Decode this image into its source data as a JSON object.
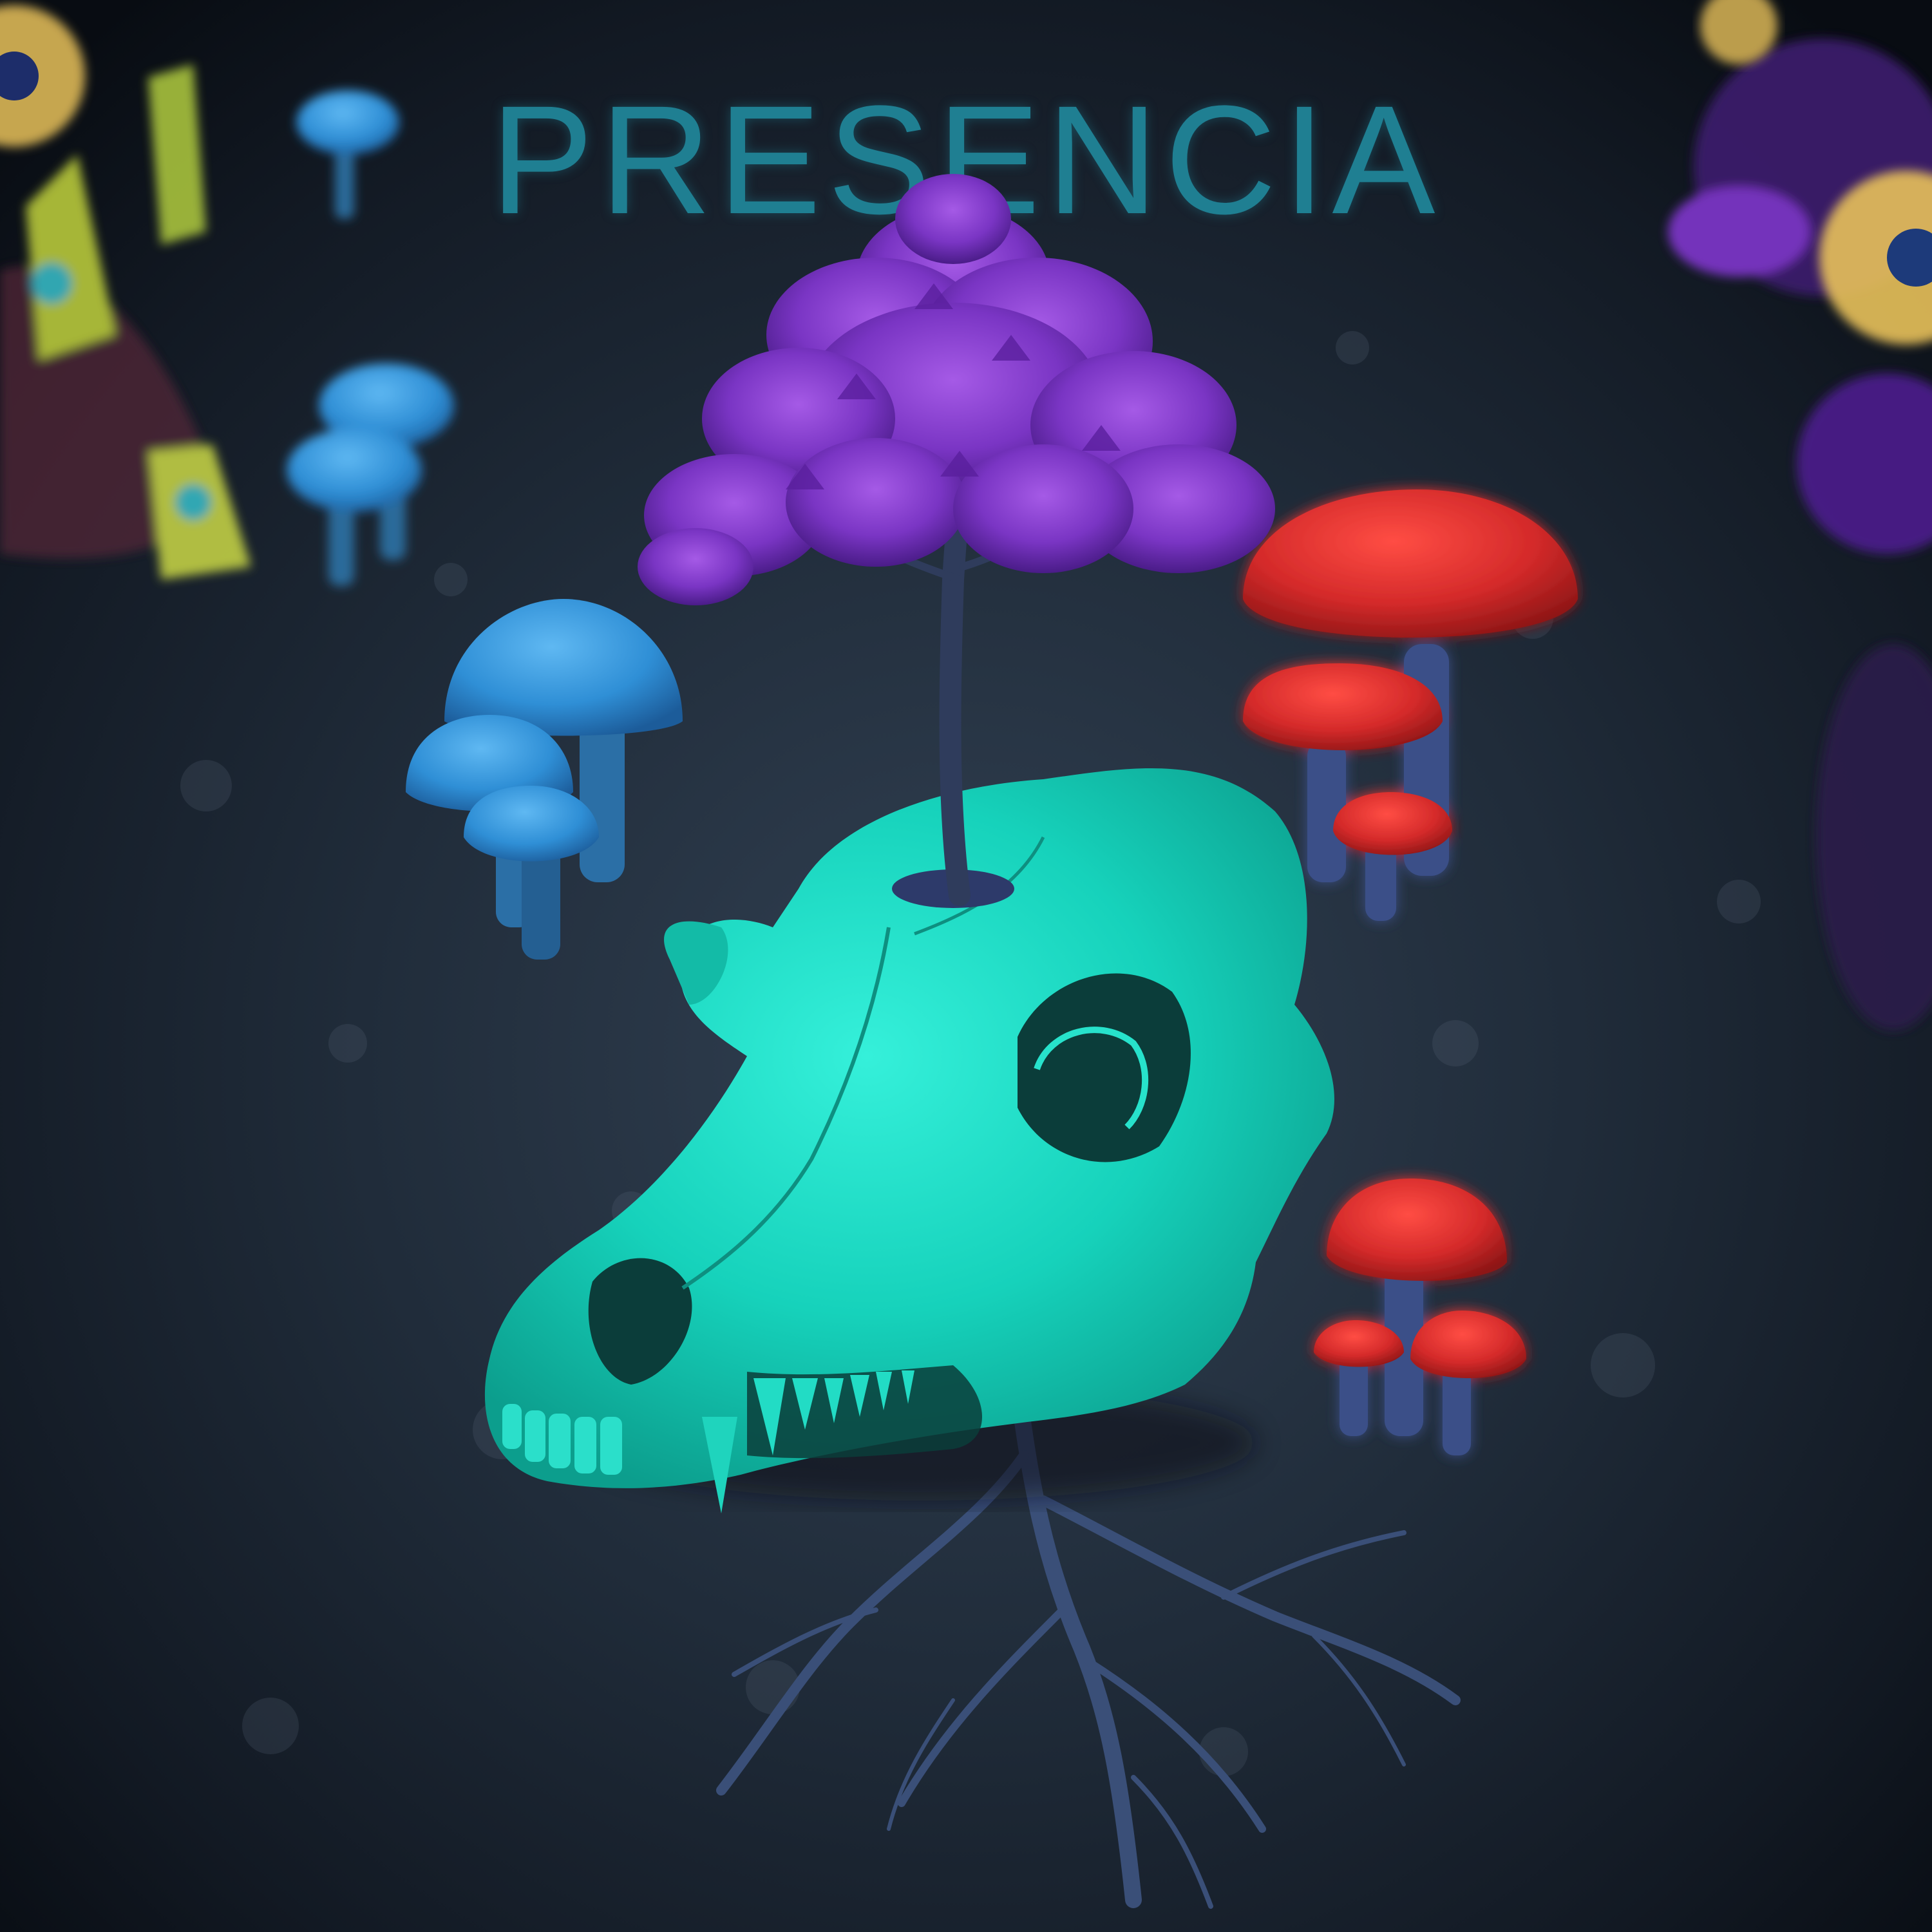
{
  "title": "PRESENCIA",
  "scene": {
    "subject": "skull-icon",
    "colors": {
      "soil": "#1f2a37",
      "skull": "#18d9c2",
      "tree_foliage": "#7a35c4",
      "blue_mushroom": "#2f8fd6",
      "red_mushroom": "#d42a2a",
      "roots": "#3a4f78",
      "title": "#1f7f92",
      "flower_yellow": "#e8c15a",
      "flower_purple": "#5a2a9a"
    },
    "icons": [
      "mushroom-icon",
      "tree-icon",
      "roots-icon",
      "flower-icon",
      "skull-icon"
    ]
  }
}
